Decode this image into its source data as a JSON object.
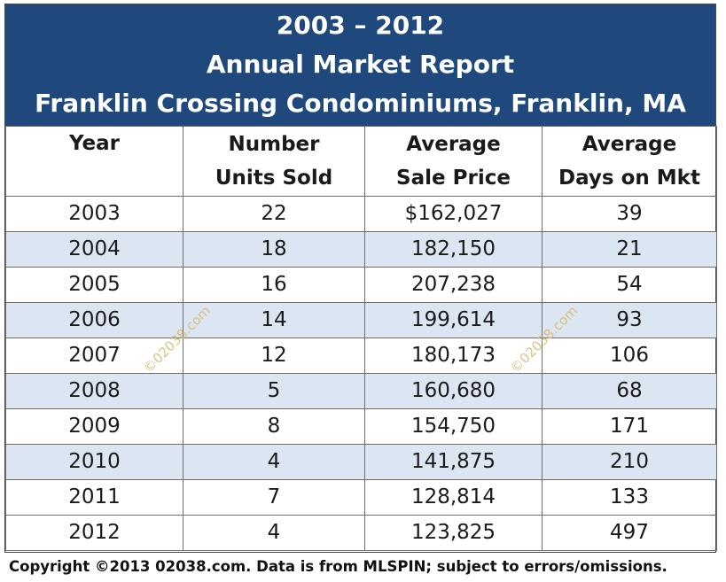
{
  "title_lines": [
    "2003 – 2012",
    "Annual Market Report",
    "Franklin Crossing Condominiums, Franklin, MA"
  ],
  "columns": {
    "year": "Year",
    "units": [
      "Number",
      "Units Sold"
    ],
    "price": [
      "Average",
      "Sale Price"
    ],
    "dom": [
      "Average",
      "Days on Mkt"
    ]
  },
  "rows": [
    {
      "year": "2003",
      "units": "22",
      "price": "$162,027",
      "dom": "39"
    },
    {
      "year": "2004",
      "units": "18",
      "price": "182,150",
      "dom": "21"
    },
    {
      "year": "2005",
      "units": "16",
      "price": "207,238",
      "dom": "54"
    },
    {
      "year": "2006",
      "units": "14",
      "price": "199,614",
      "dom": "93"
    },
    {
      "year": "2007",
      "units": "12",
      "price": "180,173",
      "dom": "106"
    },
    {
      "year": "2008",
      "units": "5",
      "price": "160,680",
      "dom": "68"
    },
    {
      "year": "2009",
      "units": "8",
      "price": "154,750",
      "dom": "171"
    },
    {
      "year": "2010",
      "units": "4",
      "price": "141,875",
      "dom": "210"
    },
    {
      "year": "2011",
      "units": "7",
      "price": "128,814",
      "dom": "133"
    },
    {
      "year": "2012",
      "units": "4",
      "price": "123,825",
      "dom": "497"
    }
  ],
  "watermark": "©02038.com",
  "footer": "Copyright ©2013 02038.com.  Data is from MLSPIN; subject to errors/omissions.",
  "colors": {
    "header_bg": "#1f497d",
    "shade_row": "#dce6f2",
    "watermark": "#d9b86a"
  },
  "chart_data": {
    "type": "table",
    "title": "2003 – 2012 Annual Market Report Franklin Crossing Condominiums, Franklin, MA",
    "columns": [
      "Year",
      "Number Units Sold",
      "Average Sale Price",
      "Average Days on Mkt"
    ],
    "rows": [
      [
        2003,
        22,
        162027,
        39
      ],
      [
        2004,
        18,
        182150,
        21
      ],
      [
        2005,
        16,
        207238,
        54
      ],
      [
        2006,
        14,
        199614,
        93
      ],
      [
        2007,
        12,
        180173,
        106
      ],
      [
        2008,
        5,
        160680,
        68
      ],
      [
        2009,
        8,
        154750,
        171
      ],
      [
        2010,
        4,
        141875,
        210
      ],
      [
        2011,
        7,
        128814,
        133
      ],
      [
        2012,
        4,
        123825,
        497
      ]
    ]
  }
}
